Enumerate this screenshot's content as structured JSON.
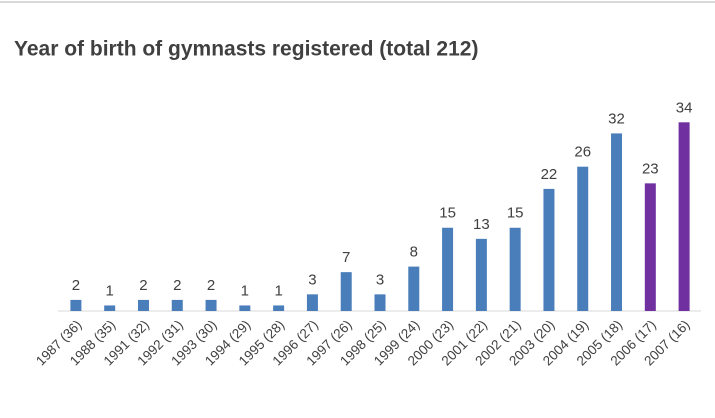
{
  "chart_data": {
    "type": "bar",
    "title": "Year of birth of gymnasts registered (total 212)",
    "categories": [
      "1987 (36)",
      "1988 (35)",
      "1991 (32)",
      "1992 (31)",
      "1993 (30)",
      "1994 (29)",
      "1995 (28)",
      "1996 (27)",
      "1997 (26)",
      "1998 (25)",
      "1999 (24)",
      "2000 (23)",
      "2001 (22)",
      "2002 (21)",
      "2003 (20)",
      "2004 (19)",
      "2005 (18)",
      "2006 (17)",
      "2007 (16)"
    ],
    "values": [
      2,
      1,
      2,
      2,
      2,
      1,
      1,
      3,
      7,
      3,
      8,
      15,
      13,
      15,
      22,
      26,
      32,
      23,
      34
    ],
    "colors": [
      "#4a7ebb",
      "#4a7ebb",
      "#4a7ebb",
      "#4a7ebb",
      "#4a7ebb",
      "#4a7ebb",
      "#4a7ebb",
      "#4a7ebb",
      "#4a7ebb",
      "#4a7ebb",
      "#4a7ebb",
      "#4a7ebb",
      "#4a7ebb",
      "#4a7ebb",
      "#4a7ebb",
      "#4a7ebb",
      "#4a7ebb",
      "#7030a0",
      "#7030a0"
    ],
    "ylim": [
      0,
      40
    ]
  }
}
